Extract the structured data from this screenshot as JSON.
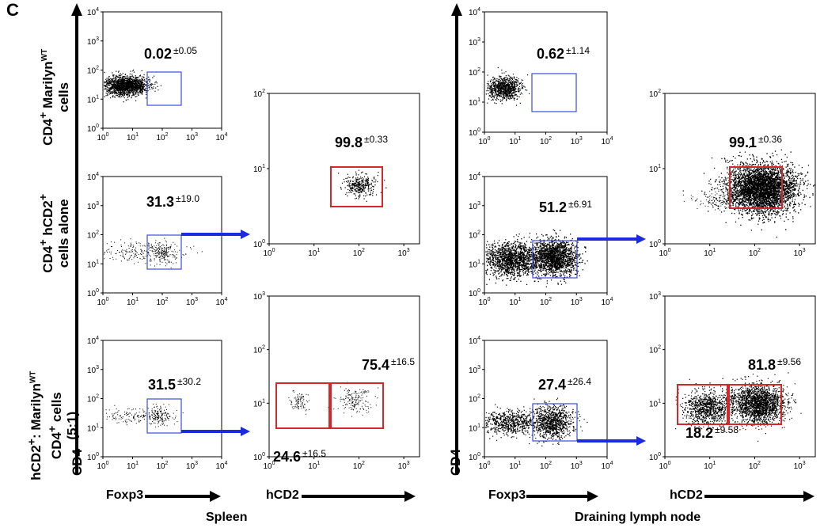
{
  "panel_letter": "C",
  "row_labels": [
    {
      "main": "CD4",
      "sup1": "+",
      "rest": " Marilyn",
      "sup2": "WT",
      "line2": "cells"
    },
    {
      "main": "CD4",
      "sup1": "+",
      "rest": " hCD2",
      "sup2": "+",
      "line2": "cells alone"
    },
    {
      "line1a": "hCD2",
      "sup0": "+",
      "line1b": ":  Marilyn",
      "sup1": "WT",
      "line2a": "CD4",
      "sup2": "+",
      "line2b": " cells",
      "line3": "(5:1)"
    }
  ],
  "y_axis_title": "CD4",
  "x_axis_left_title": "Foxp3",
  "x_axis_right_title": "hCD2",
  "footer_left": "Spleen",
  "footer_right": "Draining lymph node",
  "tick_labels": [
    "10",
    "0",
    "1",
    "2",
    "3",
    "4"
  ],
  "gates": [
    {
      "id": "spleen-r1",
      "value": "0.02",
      "sd": "±0.05"
    },
    {
      "id": "spleen-r2",
      "value": "31.3",
      "sd": "±19.0"
    },
    {
      "id": "spleen-r3",
      "value": "31.5",
      "sd": "±30.2"
    },
    {
      "id": "spleen-hcd2-r2",
      "value": "99.8",
      "sd": "±0.33"
    },
    {
      "id": "spleen-hcd2-r3-high",
      "value": "75.4",
      "sd": "±16.5"
    },
    {
      "id": "spleen-hcd2-r3-low",
      "value": "24.6",
      "sd": "±16.5"
    },
    {
      "id": "ln-r1",
      "value": "0.62",
      "sd": "±1.14"
    },
    {
      "id": "ln-r2",
      "value": "51.2",
      "sd": "±6.91"
    },
    {
      "id": "ln-r3",
      "value": "27.4",
      "sd": "±26.4"
    },
    {
      "id": "ln-hcd2-r2",
      "value": "99.1",
      "sd": "±0.36"
    },
    {
      "id": "ln-hcd2-r3-high",
      "value": "81.8",
      "sd": "±9.56"
    },
    {
      "id": "ln-hcd2-r3-low",
      "value": "18.2",
      "sd": "±9.58"
    }
  ],
  "colors": {
    "gate_blue": "#3b4bd8",
    "gate_red": "#d0282b",
    "arrow_blue": "#1a2be0",
    "dots": "#000000"
  }
}
